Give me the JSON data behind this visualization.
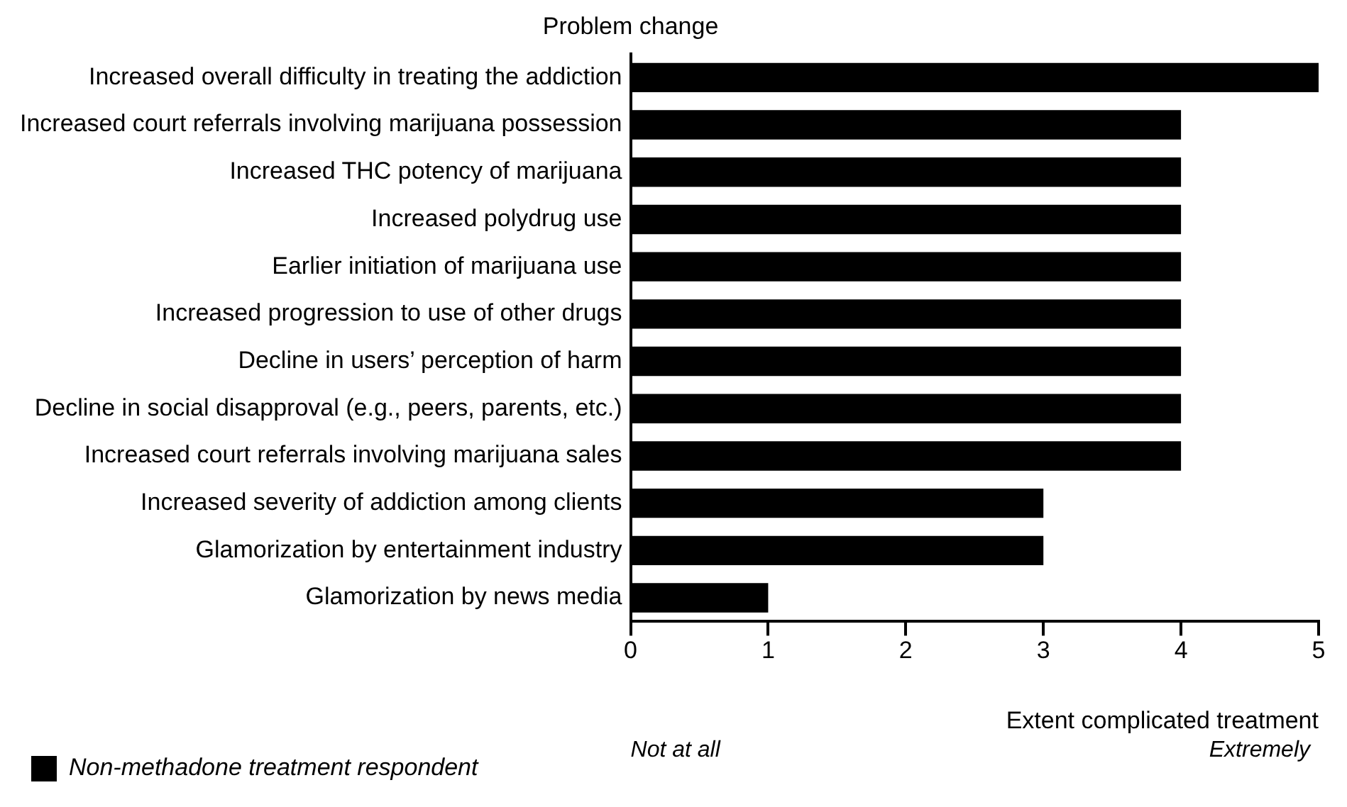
{
  "chart_data": {
    "type": "bar",
    "orientation": "horizontal",
    "ylabel": "Problem change",
    "xlabel": "Extent complicated treatment",
    "categories": [
      "Increased overall difficulty in treating the addiction",
      "Increased court referrals involving marijuana possession",
      "Increased THC potency of marijuana",
      "Increased polydrug use",
      "Earlier initiation of marijuana use",
      "Increased progression to use of other drugs",
      "Decline in users’ perception of harm",
      "Decline in social disapproval (e.g., peers, parents, etc.)",
      "Increased court referrals involving marijuana sales",
      "Increased severity of addiction among clients",
      "Glamorization by entertainment industry",
      "Glamorization by news media"
    ],
    "series": [
      {
        "name": "Non-methadone treatment respondent",
        "color": "#000000",
        "values": [
          5,
          4,
          4,
          4,
          4,
          4,
          4,
          4,
          4,
          3,
          3,
          1
        ]
      }
    ],
    "xlim": [
      0,
      5
    ],
    "xticks": [
      0,
      1,
      2,
      3,
      4,
      5
    ],
    "grid": false,
    "legend": "bottom left",
    "annotations": [
      "Not at all",
      "Extremely"
    ]
  }
}
